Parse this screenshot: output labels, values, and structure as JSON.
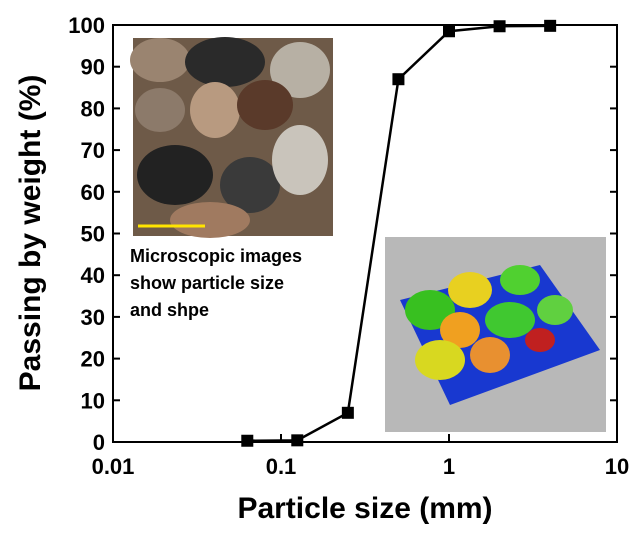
{
  "chart_data": {
    "type": "line",
    "xlabel": "Particle size (mm)",
    "ylabel": "Passing by weight (%)",
    "annotation": [
      "Microscopic images",
      "show particle size",
      "and shpe"
    ],
    "x": [
      0.063,
      0.125,
      0.25,
      0.5,
      1,
      2,
      4
    ],
    "series": [
      {
        "name": "Passing",
        "color": "#000000",
        "values": [
          0.3,
          0.4,
          7,
          87,
          98.5,
          99.7,
          99.8
        ]
      }
    ],
    "xscale": "log",
    "xlim": [
      0.01,
      10
    ],
    "xticks": [
      0.01,
      0.1,
      1,
      10
    ],
    "ylim": [
      0,
      100
    ],
    "yticks": [
      0,
      10,
      20,
      30,
      40,
      50,
      60,
      70,
      80,
      90,
      100
    ]
  }
}
